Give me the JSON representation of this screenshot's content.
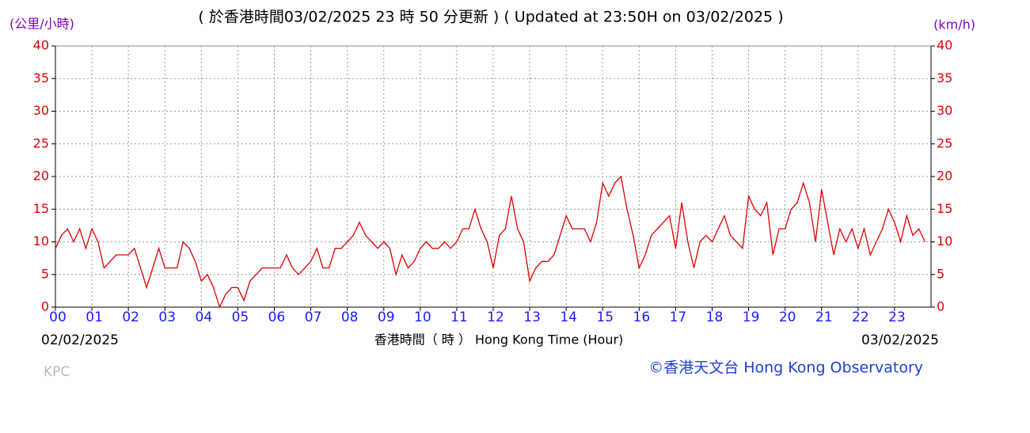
{
  "chart_data": {
    "type": "line",
    "title": "( 於香港時間03/02/2025 23 時 50 分更新 ) ( Updated at 23:50H on 03/02/2025 )",
    "y_unit_left": "(公里/小時)",
    "y_unit_right": "(km/h)",
    "x_label": "香港時間（ 時 ） Hong Kong Time (Hour)",
    "start_date": "02/02/2025",
    "end_date": "03/02/2025",
    "station": "KPC",
    "credit": "©香港天文台 Hong Kong Observatory",
    "xlim": [
      0,
      1440
    ],
    "xticks": [
      {
        "value": 0,
        "label": "00"
      },
      {
        "value": 60,
        "label": "01"
      },
      {
        "value": 120,
        "label": "02"
      },
      {
        "value": 180,
        "label": "03"
      },
      {
        "value": 240,
        "label": "04"
      },
      {
        "value": 300,
        "label": "05"
      },
      {
        "value": 360,
        "label": "06"
      },
      {
        "value": 420,
        "label": "07"
      },
      {
        "value": 480,
        "label": "08"
      },
      {
        "value": 540,
        "label": "09"
      },
      {
        "value": 600,
        "label": "10"
      },
      {
        "value": 660,
        "label": "11"
      },
      {
        "value": 720,
        "label": "12"
      },
      {
        "value": 780,
        "label": "13"
      },
      {
        "value": 840,
        "label": "14"
      },
      {
        "value": 900,
        "label": "15"
      },
      {
        "value": 960,
        "label": "16"
      },
      {
        "value": 1020,
        "label": "17"
      },
      {
        "value": 1080,
        "label": "18"
      },
      {
        "value": 1140,
        "label": "19"
      },
      {
        "value": 1200,
        "label": "20"
      },
      {
        "value": 1260,
        "label": "21"
      },
      {
        "value": 1320,
        "label": "22"
      },
      {
        "value": 1380,
        "label": "23"
      }
    ],
    "ylim": [
      0,
      40
    ],
    "yticks": [
      0,
      5,
      10,
      15,
      20,
      25,
      30,
      35,
      40
    ],
    "grid": true,
    "x": [
      0,
      10,
      20,
      30,
      40,
      50,
      60,
      70,
      80,
      90,
      100,
      110,
      120,
      130,
      140,
      150,
      160,
      170,
      180,
      190,
      200,
      210,
      220,
      230,
      240,
      250,
      260,
      270,
      280,
      290,
      300,
      310,
      320,
      330,
      340,
      350,
      360,
      370,
      380,
      390,
      400,
      410,
      420,
      430,
      440,
      450,
      460,
      470,
      480,
      490,
      500,
      510,
      520,
      530,
      540,
      550,
      560,
      570,
      580,
      590,
      600,
      610,
      620,
      630,
      640,
      650,
      660,
      670,
      680,
      690,
      700,
      710,
      720,
      730,
      740,
      750,
      760,
      770,
      780,
      790,
      800,
      810,
      820,
      830,
      840,
      850,
      860,
      870,
      880,
      890,
      900,
      910,
      920,
      930,
      940,
      950,
      960,
      970,
      980,
      990,
      1000,
      1010,
      1020,
      1030,
      1040,
      1050,
      1060,
      1070,
      1080,
      1090,
      1100,
      1110,
      1120,
      1130,
      1140,
      1150,
      1160,
      1170,
      1180,
      1190,
      1200,
      1210,
      1220,
      1230,
      1240,
      1250,
      1260,
      1270,
      1280,
      1290,
      1300,
      1310,
      1320,
      1330,
      1340,
      1350,
      1360,
      1370,
      1380,
      1390,
      1400,
      1410,
      1420,
      1430
    ],
    "series": [
      {
        "color": "#e00000",
        "values": [
          9,
          11,
          12,
          10,
          12,
          9,
          12,
          10,
          6,
          7,
          8,
          8,
          8,
          9,
          6,
          3,
          6,
          9,
          6,
          6,
          6,
          10,
          9,
          7,
          4,
          5,
          3,
          0,
          2,
          3,
          3,
          1,
          4,
          5,
          6,
          6,
          6,
          6,
          8,
          6,
          5,
          6,
          7,
          9,
          6,
          6,
          9,
          9,
          10,
          11,
          13,
          11,
          10,
          9,
          10,
          9,
          5,
          8,
          6,
          7,
          9,
          10,
          9,
          9,
          10,
          9,
          10,
          12,
          12,
          15,
          12,
          10,
          6,
          11,
          12,
          17,
          12,
          10,
          4,
          6,
          7,
          7,
          8,
          11,
          14,
          12,
          12,
          12,
          10,
          13,
          19,
          17,
          19,
          20,
          15,
          11,
          6,
          8,
          11,
          12,
          13,
          14,
          9,
          16,
          10,
          6,
          10,
          11,
          10,
          12,
          14,
          11,
          10,
          9,
          17,
          15,
          14,
          16,
          8,
          12,
          12,
          15,
          16,
          19,
          16,
          10,
          18,
          13,
          8,
          12,
          10,
          12,
          9,
          12,
          8,
          10,
          12,
          15,
          13,
          10,
          14,
          11,
          12,
          10
        ]
      }
    ]
  }
}
